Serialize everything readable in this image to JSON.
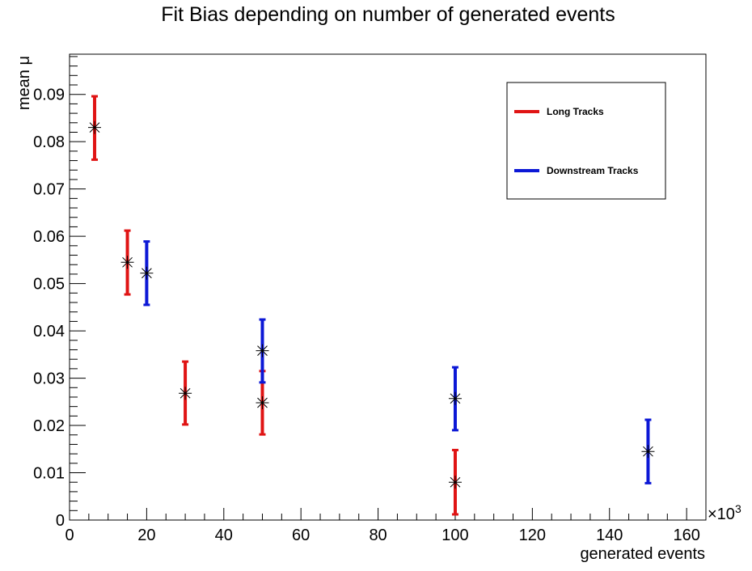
{
  "chart_data": {
    "type": "scatter",
    "title": "Fit Bias depending on number of generated events",
    "xlabel": "generated events",
    "ylabel": "mean μ",
    "x_multiplier": "×10",
    "x_multiplier_exp": "3",
    "xlim": [
      0,
      165
    ],
    "ylim": [
      0,
      0.0985
    ],
    "x_ticks": [
      0,
      20,
      40,
      60,
      80,
      100,
      120,
      140,
      160
    ],
    "x_tick_labels": [
      "0",
      "20",
      "40",
      "60",
      "80",
      "100",
      "120",
      "140",
      "160"
    ],
    "y_ticks": [
      0,
      0.01,
      0.02,
      0.03,
      0.04,
      0.05,
      0.06,
      0.07,
      0.08,
      0.09
    ],
    "y_tick_labels": [
      "0",
      "0.01",
      "0.02",
      "0.03",
      "0.04",
      "0.05",
      "0.06",
      "0.07",
      "0.08",
      "0.09"
    ],
    "grid": false,
    "legend_position": "top-right",
    "series": [
      {
        "name": "Long Tracks",
        "color": "#e01414",
        "points": [
          {
            "x": 6.5,
            "y": 0.083,
            "err_low": 0.0762,
            "err_high": 0.0896
          },
          {
            "x": 15,
            "y": 0.0545,
            "err_low": 0.0477,
            "err_high": 0.0612
          },
          {
            "x": 30,
            "y": 0.0268,
            "err_low": 0.0202,
            "err_high": 0.0335
          },
          {
            "x": 50,
            "y": 0.0248,
            "err_low": 0.0181,
            "err_high": 0.0315
          },
          {
            "x": 100,
            "y": 0.008,
            "err_low": 0.0012,
            "err_high": 0.0148
          }
        ]
      },
      {
        "name": "Downstream Tracks",
        "color": "#0c18d6",
        "points": [
          {
            "x": 20,
            "y": 0.0522,
            "err_low": 0.0455,
            "err_high": 0.0589
          },
          {
            "x": 50,
            "y": 0.0358,
            "err_low": 0.0291,
            "err_high": 0.0424
          },
          {
            "x": 100,
            "y": 0.0257,
            "err_low": 0.019,
            "err_high": 0.0323
          },
          {
            "x": 150,
            "y": 0.0145,
            "err_low": 0.0078,
            "err_high": 0.0212
          }
        ]
      }
    ]
  }
}
